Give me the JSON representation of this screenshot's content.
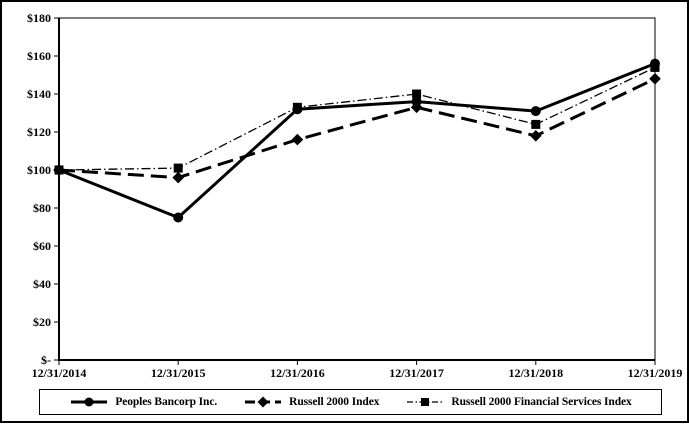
{
  "chart_data": {
    "type": "line",
    "title": "",
    "xlabel": "",
    "ylabel": "",
    "categories": [
      "12/31/2014",
      "12/31/2015",
      "12/31/2016",
      "12/31/2017",
      "12/31/2018",
      "12/31/2019"
    ],
    "y_axis": {
      "min": 0,
      "max": 180,
      "step": 20,
      "tick_labels": [
        "$-",
        "$20",
        "$40",
        "$60",
        "$80",
        "$100",
        "$120",
        "$140",
        "$160",
        "$180"
      ]
    },
    "series": [
      {
        "name": "Peoples Bancorp Inc.",
        "marker": "circle",
        "line_style": "solid",
        "values": [
          100,
          75,
          132,
          136,
          131,
          156
        ]
      },
      {
        "name": "Russell 2000 Index",
        "marker": "diamond",
        "line_style": "dashed",
        "values": [
          100,
          96,
          116,
          133,
          118,
          148
        ]
      },
      {
        "name": "Russell 2000 Financial Services Index",
        "marker": "square",
        "line_style": "dash-dot",
        "values": [
          100,
          101,
          133,
          140,
          124,
          154
        ]
      }
    ],
    "grid": false,
    "legend_position": "bottom",
    "colors": {
      "foreground": "#000000",
      "background": "#ffffff"
    }
  }
}
